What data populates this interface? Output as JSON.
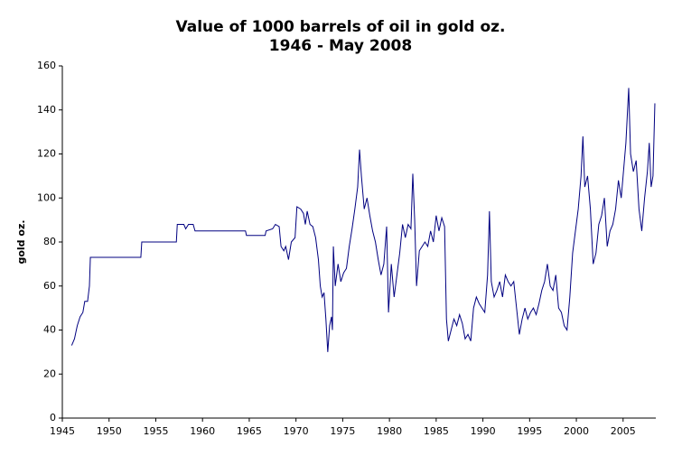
{
  "chart_data": {
    "type": "line",
    "title": "Value of 1000 barrels of oil in gold oz.",
    "subtitle": "1946 - May 2008",
    "ylabel": "gold oz.",
    "x": [
      1946.0,
      1946.3,
      1946.6,
      1946.9,
      1947.2,
      1947.4,
      1947.7,
      1947.9,
      1948.0,
      1953.4,
      1953.5,
      1957.2,
      1957.3,
      1958.0,
      1958.2,
      1958.5,
      1959.0,
      1959.2,
      1964.6,
      1964.7,
      1966.7,
      1966.8,
      1967.5,
      1967.8,
      1968.2,
      1968.4,
      1968.7,
      1968.9,
      1969.2,
      1969.5,
      1969.9,
      1970.1,
      1970.5,
      1970.8,
      1971.0,
      1971.2,
      1971.5,
      1971.8,
      1972.1,
      1972.4,
      1972.6,
      1972.8,
      1973.0,
      1973.2,
      1973.4,
      1973.6,
      1973.8,
      1973.9,
      1974.0,
      1974.2,
      1974.5,
      1974.8,
      1975.1,
      1975.4,
      1975.7,
      1976.0,
      1976.3,
      1976.6,
      1976.8,
      1977.0,
      1977.3,
      1977.6,
      1977.9,
      1978.2,
      1978.5,
      1978.8,
      1979.1,
      1979.4,
      1979.7,
      1979.9,
      1980.2,
      1980.5,
      1980.8,
      1981.1,
      1981.4,
      1981.7,
      1982.0,
      1982.3,
      1982.5,
      1982.7,
      1982.9,
      1983.2,
      1983.5,
      1983.8,
      1984.1,
      1984.4,
      1984.7,
      1985.0,
      1985.3,
      1985.6,
      1985.9,
      1986.1,
      1986.3,
      1986.6,
      1986.9,
      1987.2,
      1987.5,
      1987.8,
      1988.1,
      1988.4,
      1988.7,
      1989.0,
      1989.3,
      1989.6,
      1989.9,
      1990.2,
      1990.5,
      1990.7,
      1990.9,
      1991.2,
      1991.5,
      1991.8,
      1992.1,
      1992.4,
      1992.7,
      1993.0,
      1993.3,
      1993.6,
      1993.9,
      1994.2,
      1994.5,
      1994.8,
      1995.1,
      1995.4,
      1995.7,
      1996.0,
      1996.3,
      1996.6,
      1996.9,
      1997.2,
      1997.5,
      1997.8,
      1998.1,
      1998.4,
      1998.7,
      1999.0,
      1999.3,
      1999.6,
      1999.9,
      2000.2,
      2000.5,
      2000.7,
      2000.9,
      2001.2,
      2001.5,
      2001.8,
      2002.1,
      2002.4,
      2002.7,
      2003.0,
      2003.3,
      2003.6,
      2003.9,
      2004.2,
      2004.5,
      2004.8,
      2005.0,
      2005.3,
      2005.6,
      2005.8,
      2006.1,
      2006.4,
      2006.7,
      2007.0,
      2007.3,
      2007.6,
      2007.8,
      2008.0,
      2008.2,
      2008.4
    ],
    "series": [
      {
        "name": "gold oz.",
        "color": "#000080",
        "values": [
          33,
          36,
          42,
          46,
          48,
          53,
          53,
          60,
          73,
          73,
          80,
          80,
          88,
          88,
          86,
          88,
          88,
          85,
          85,
          83,
          83,
          85,
          86,
          88,
          87,
          78,
          76,
          78,
          72,
          80,
          82,
          96,
          95,
          93,
          88,
          94,
          88,
          87,
          82,
          72,
          60,
          55,
          57,
          45,
          30,
          42,
          46,
          40,
          78,
          60,
          70,
          62,
          66,
          68,
          78,
          86,
          95,
          105,
          122,
          110,
          95,
          100,
          92,
          85,
          80,
          72,
          65,
          70,
          87,
          48,
          70,
          55,
          65,
          75,
          88,
          82,
          88,
          86,
          111,
          90,
          60,
          76,
          78,
          80,
          78,
          85,
          80,
          92,
          85,
          91,
          87,
          45,
          35,
          40,
          45,
          42,
          47,
          43,
          36,
          38,
          35,
          50,
          55,
          52,
          50,
          48,
          65,
          94,
          62,
          55,
          58,
          62,
          55,
          65,
          62,
          60,
          62,
          50,
          38,
          45,
          50,
          45,
          48,
          50,
          47,
          52,
          58,
          62,
          70,
          60,
          58,
          65,
          50,
          48,
          42,
          40,
          55,
          75,
          85,
          95,
          110,
          128,
          105,
          110,
          95,
          70,
          75,
          88,
          92,
          100,
          78,
          85,
          88,
          95,
          108,
          100,
          110,
          125,
          150,
          120,
          112,
          117,
          95,
          85,
          100,
          112,
          125,
          105,
          110,
          143
        ]
      }
    ],
    "xlim": [
      1945,
      2008.5
    ],
    "xticks": [
      1945,
      1950,
      1955,
      1960,
      1965,
      1970,
      1975,
      1980,
      1985,
      1990,
      1995,
      2000,
      2005
    ],
    "ylim": [
      0,
      160
    ],
    "yticks": [
      0,
      20,
      40,
      60,
      80,
      100,
      120,
      140,
      160
    ]
  }
}
